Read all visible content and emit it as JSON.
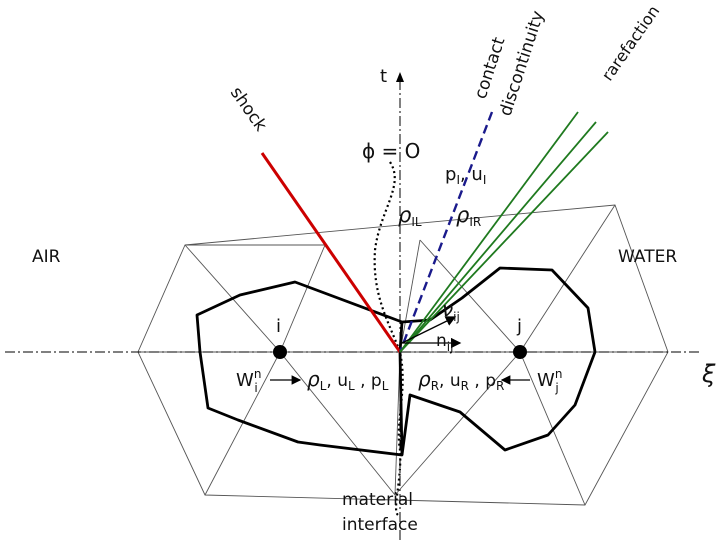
{
  "labels": {
    "air": "AIR",
    "water": "WATER",
    "t_axis": "t",
    "xi_axis": "ξ",
    "shock": "shock",
    "contact_line1": "contact",
    "contact_line2": "discontinuity",
    "rarefaction": "rarefaction",
    "phi_zero": "ϕ = O",
    "pI_uI": "p",
    "pI_uI_sub": "I",
    "pI_uI_mid": ", u",
    "pI_uI_sub2": "I",
    "rho_IL": "ρ",
    "rho_IL_sub": "IL",
    "rho_IR": "ρ",
    "rho_IR_sub": "IR",
    "node_i": "i",
    "node_j": "j",
    "W_i": "W",
    "W_i_sup": "n",
    "W_i_sub": "i",
    "W_j": "W",
    "W_j_sup": "n",
    "W_j_sub": "j",
    "left_state": "ρ",
    "left_state_sub": "L",
    "left_state_rest": ", u",
    "left_state_sub2": "L",
    "left_state_rest2": " , p",
    "left_state_sub3": "L",
    "right_state": "ρ",
    "right_state_sub": "R",
    "right_state_rest": ", u",
    "right_state_sub2": "R",
    "right_state_rest2": " , p",
    "right_state_sub3": "R",
    "n_ij": "n",
    "n_ij_sub": "ij",
    "nu_ij": "ν",
    "nu_ij_sub": "ij",
    "material1": "material",
    "material2": "interface"
  },
  "colors": {
    "shock": "#cc0000",
    "contact": "#1a1a8c",
    "rarefaction": "#1f7a1f",
    "mesh": "#555555",
    "cell": "#000000"
  }
}
